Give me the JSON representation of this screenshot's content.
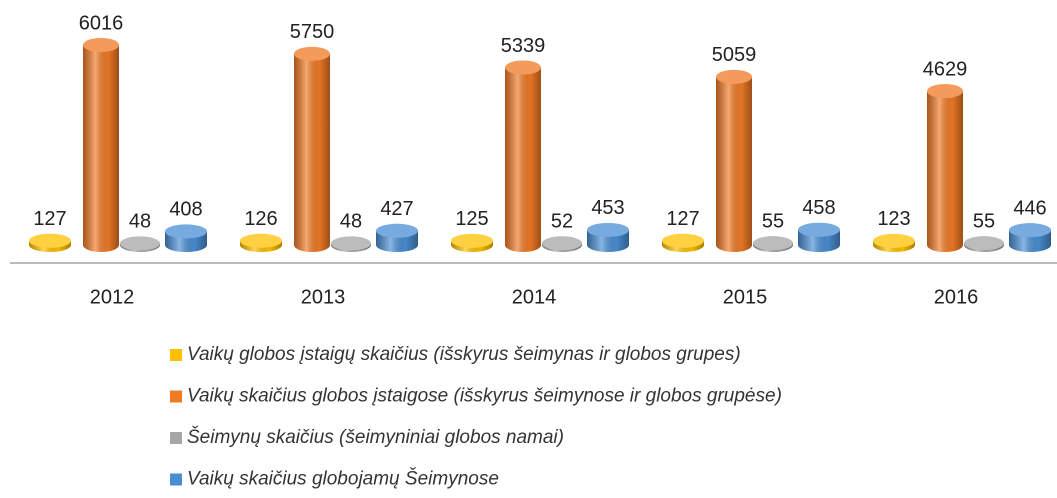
{
  "chart_data": {
    "type": "bar3d",
    "categories": [
      "2012",
      "2013",
      "2014",
      "2015",
      "2016"
    ],
    "series": [
      {
        "name": "Vaikų globos įstaigų skaičius (išskyrus šeimynas ir globos grupes)",
        "color": "#ffc000",
        "values": [
          127,
          126,
          125,
          127,
          123
        ]
      },
      {
        "name": "Vaikų skaičius globos įstaigose (išskyrus šeimynose ir globos grupėse)",
        "color": "#f07a26",
        "values": [
          6016,
          5750,
          5339,
          5059,
          4629
        ]
      },
      {
        "name": "Šeimynų skaičius (šeimyniniai globos namai)",
        "color": "#a6a6a6",
        "values": [
          48,
          48,
          52,
          55,
          55
        ]
      },
      {
        "name": "Vaikų skaičius globojamų Šeimynose",
        "color": "#4a8fd4",
        "values": [
          408,
          427,
          453,
          458,
          446
        ]
      }
    ],
    "legend": "bottom"
  }
}
